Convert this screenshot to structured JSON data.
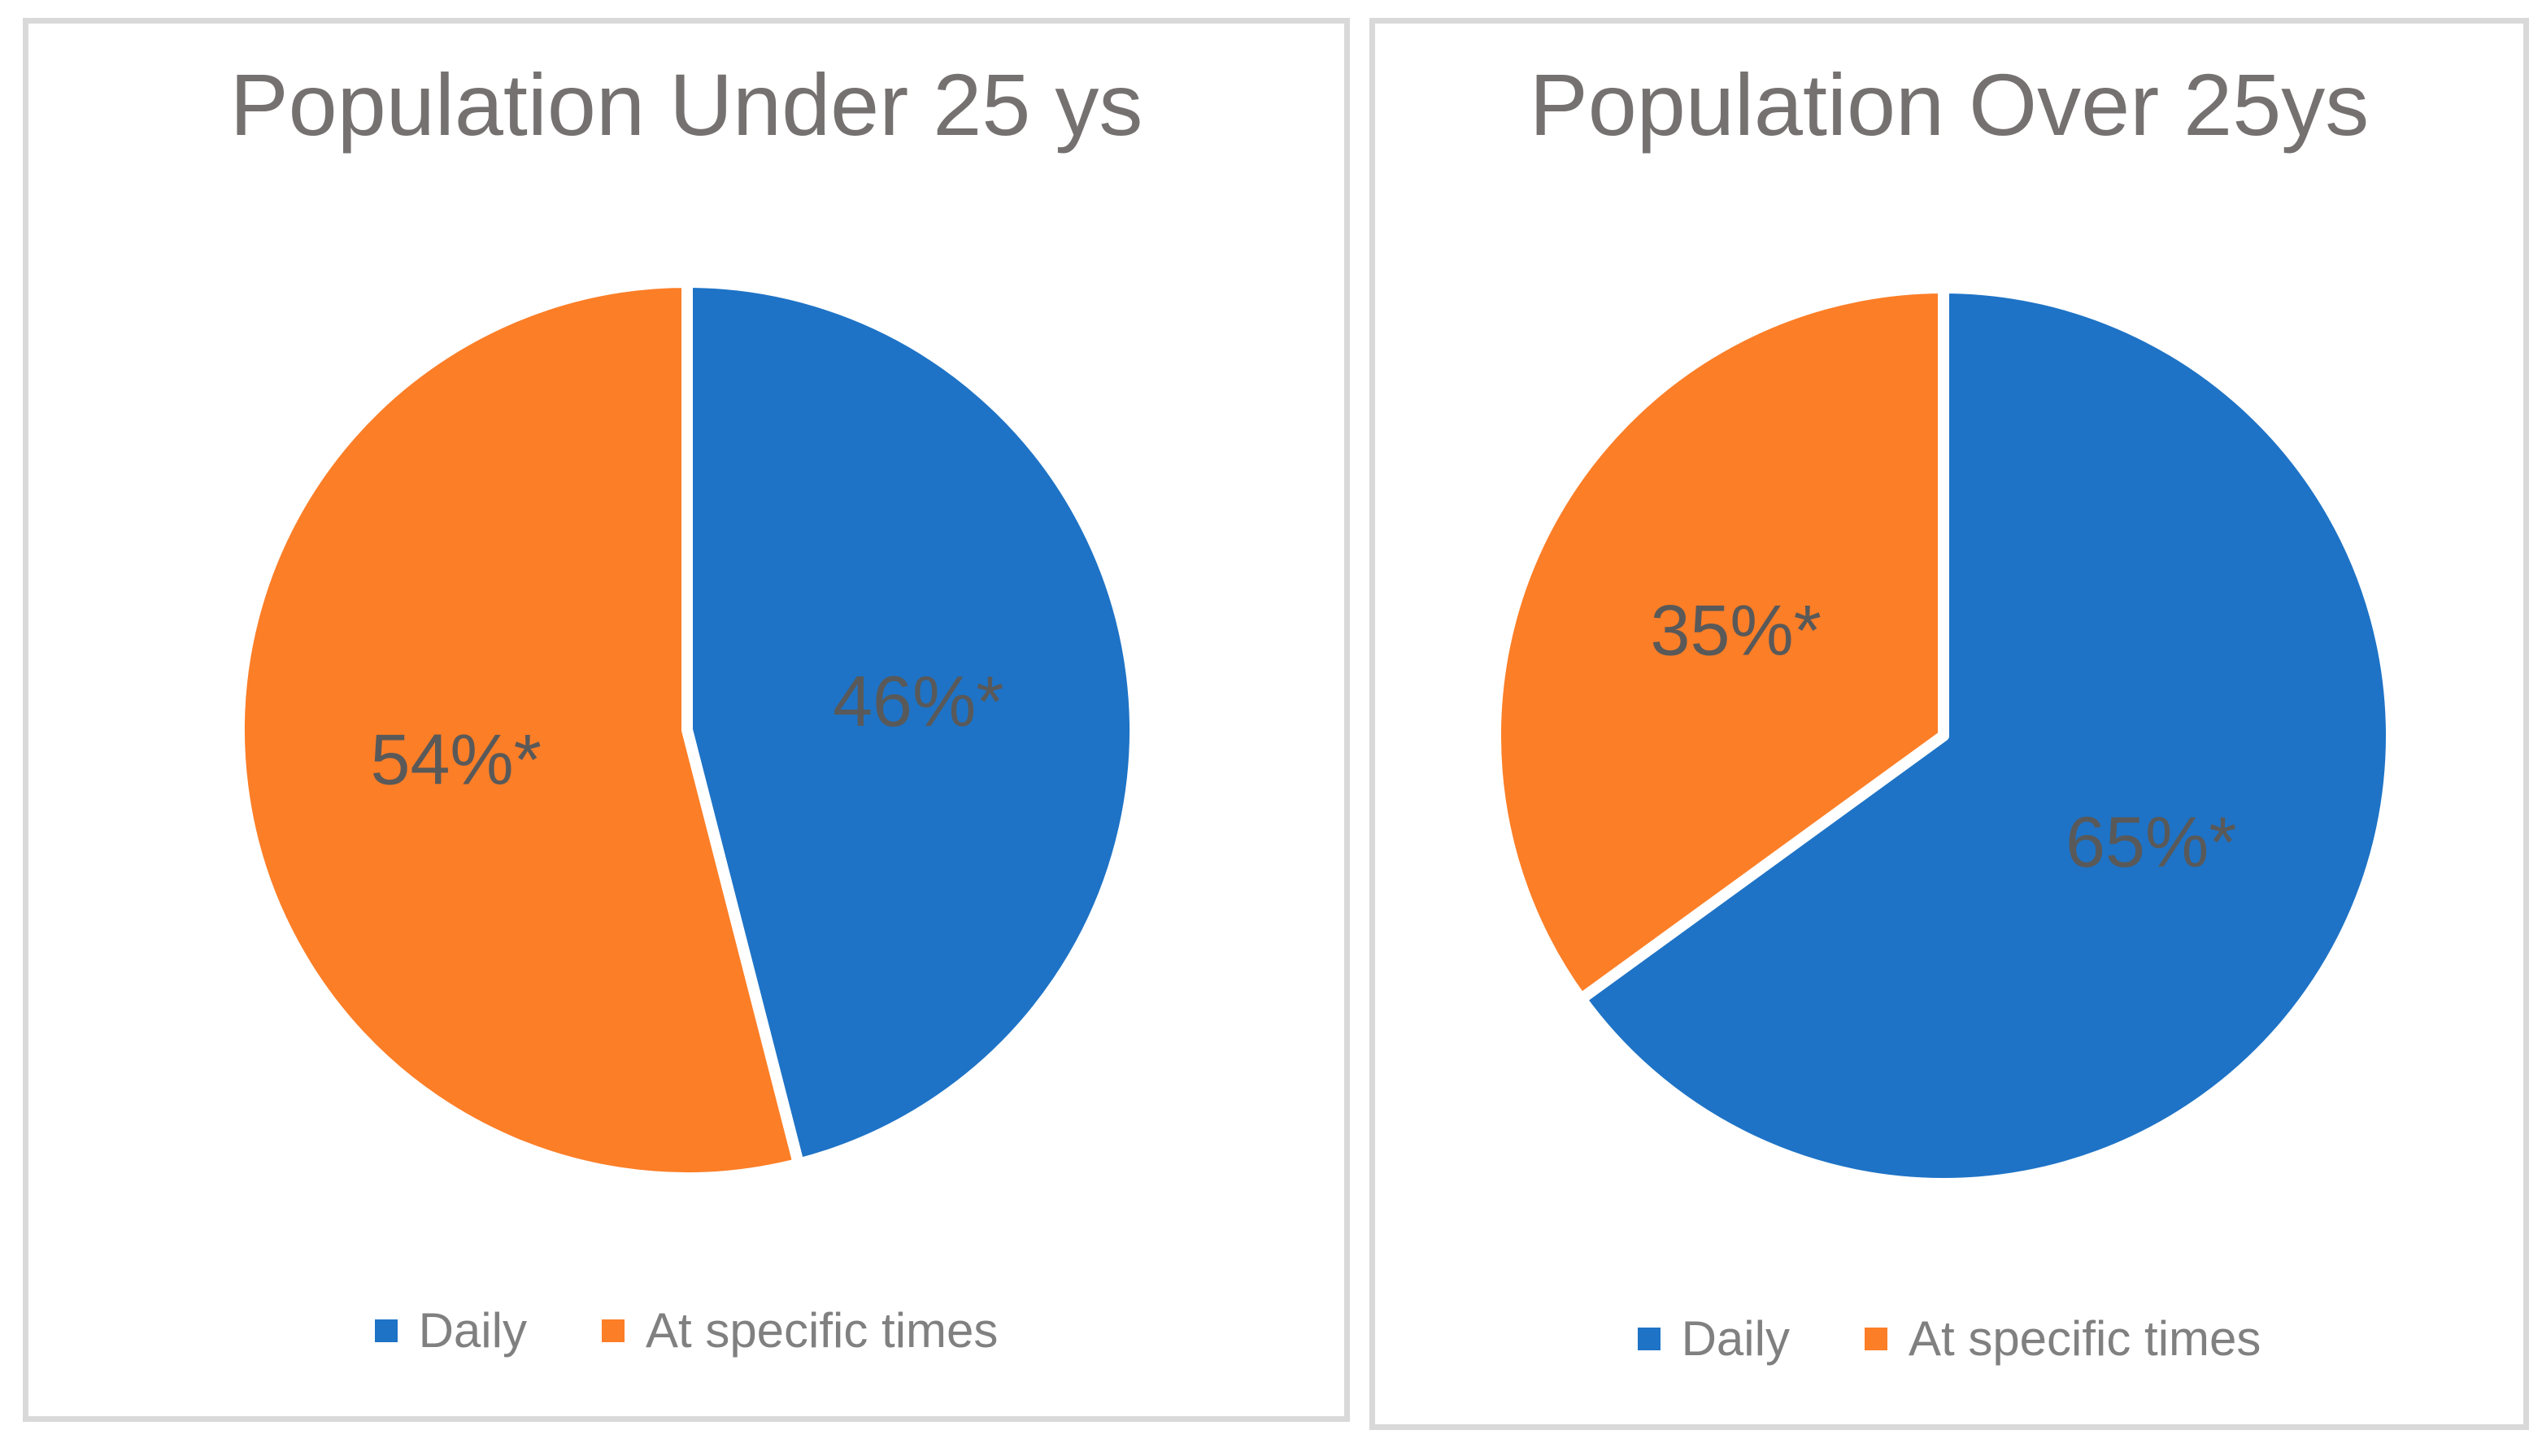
{
  "colors": {
    "blue": "#1E73C6",
    "orange": "#FC7E27",
    "title_text": "#767171",
    "data_label_text": "#595959",
    "legend_text": "#808080",
    "panel_border": "#D9D9D9",
    "slice_separator": "#FFFFFF"
  },
  "chart_data": [
    {
      "type": "pie",
      "title": "Population Under 25 ys",
      "start": "12-oclock",
      "direction": "clockwise",
      "legend_position": "bottom",
      "slices": [
        {
          "legend_label": "Daily",
          "value_pct": 46,
          "data_label": "46%*",
          "color": "#1E73C6"
        },
        {
          "legend_label": "At specific times",
          "value_pct": 54,
          "data_label": "54%*",
          "color": "#FC7E27"
        }
      ]
    },
    {
      "type": "pie",
      "title": "Population Over 25ys",
      "start": "12-oclock",
      "direction": "clockwise",
      "legend_position": "bottom",
      "slices": [
        {
          "legend_label": "Daily",
          "value_pct": 65,
          "data_label": "65%*",
          "color": "#1E73C6"
        },
        {
          "legend_label": "At specific times",
          "value_pct": 35,
          "data_label": "35%*",
          "color": "#FC7E27"
        }
      ]
    }
  ]
}
